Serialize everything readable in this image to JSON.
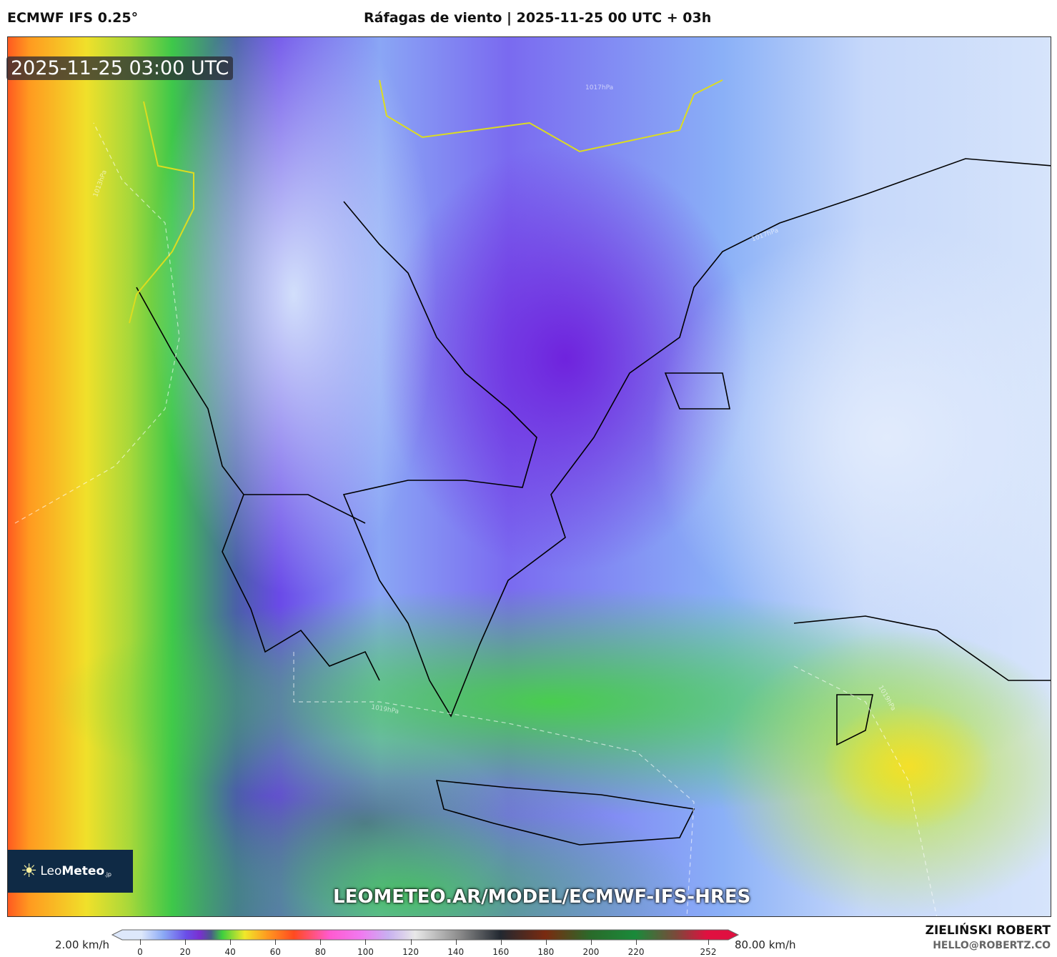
{
  "header": {
    "model": "ECMWF IFS 0.25°",
    "title": "Ráfagas de viento | 2025-11-25 00 UTC + 03h"
  },
  "map": {
    "timestamp": "2025-11-25 03:00 UTC",
    "url": "LEOMETEO.AR/MODEL/ECMWF-IFS-HRES",
    "logo": {
      "text_light": "Leo",
      "text_bold": "Meteo",
      "suffix": ".jp"
    },
    "isobar_labels": [
      "1017hPa",
      "1013hPa",
      "1019hPa",
      "1017hPa",
      "1019hPa"
    ]
  },
  "colorbar": {
    "min_label": "2.00 km/h",
    "max_label": "80.00 km/h",
    "ticks": [
      0,
      20,
      40,
      60,
      80,
      100,
      120,
      140,
      160,
      180,
      200,
      220,
      252
    ],
    "stops": [
      [
        0,
        "#dde8fb"
      ],
      [
        10,
        "#8aa8f5"
      ],
      [
        20,
        "#6a4ee8"
      ],
      [
        26,
        "#7a2fd0"
      ],
      [
        31,
        "#4a5a8a"
      ],
      [
        36,
        "#3ecf3e"
      ],
      [
        46,
        "#f0e82a"
      ],
      [
        56,
        "#ff9a20"
      ],
      [
        68,
        "#ff4a20"
      ],
      [
        84,
        "#ff5ad0"
      ],
      [
        98,
        "#f07af0"
      ],
      [
        110,
        "#c8b0f0"
      ],
      [
        122,
        "#e8e8e8"
      ],
      [
        142,
        "#8a8a8a"
      ],
      [
        160,
        "#222830"
      ],
      [
        180,
        "#7a2a10"
      ],
      [
        200,
        "#2a6a2a"
      ],
      [
        220,
        "#1a8a3a"
      ],
      [
        238,
        "#7a4a3a"
      ],
      [
        252,
        "#e01040"
      ]
    ]
  },
  "credits": {
    "author": "ZIELIŃSKI ROBERT",
    "email": "HELLO@ROBERTZ.CO"
  }
}
